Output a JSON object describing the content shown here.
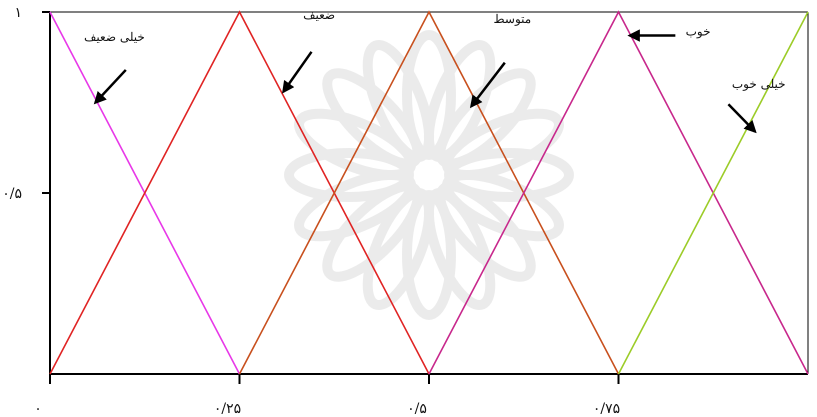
{
  "chart_data": {
    "type": "line",
    "title": "",
    "xlabel": "",
    "ylabel": "",
    "xlim": [
      0,
      1
    ],
    "ylim": [
      0,
      1
    ],
    "grid": false,
    "legend": "none",
    "x_ticks": [
      {
        "value": 0,
        "label": "۰"
      },
      {
        "value": 0.25,
        "label": "۰/۲۵"
      },
      {
        "value": 0.5,
        "label": "۰/۵"
      },
      {
        "value": 0.75,
        "label": "۰/۷۵"
      }
    ],
    "y_ticks": [
      {
        "value": 0.5,
        "label": "۰/۵"
      },
      {
        "value": 1,
        "label": "۱"
      }
    ],
    "series": [
      {
        "key": "very-weak",
        "color": "#e838e8",
        "points": [
          [
            0,
            1
          ],
          [
            0.25,
            0
          ]
        ]
      },
      {
        "key": "weak",
        "color": "#e02424",
        "points": [
          [
            0,
            0
          ],
          [
            0.25,
            1
          ],
          [
            0.5,
            0
          ]
        ]
      },
      {
        "key": "medium",
        "color": "#c8501e",
        "points": [
          [
            0.25,
            0
          ],
          [
            0.5,
            1
          ],
          [
            0.75,
            0
          ]
        ]
      },
      {
        "key": "good",
        "color": "#c8288c",
        "points": [
          [
            0.5,
            0
          ],
          [
            0.75,
            1
          ],
          [
            1,
            0
          ]
        ]
      },
      {
        "key": "very-good",
        "color": "#9ccc28",
        "points": [
          [
            0.75,
            0
          ],
          [
            1,
            1
          ]
        ]
      }
    ],
    "annotations": [
      {
        "key": "very-weak",
        "text": "خیلی ضعیف",
        "x": 0.085,
        "y": 0.92,
        "arrow_to": [
          0.06,
          0.75
        ],
        "arrow_from": [
          0.1,
          0.84
        ]
      },
      {
        "key": "weak",
        "text": "ضعیف",
        "x": 0.355,
        "y": 0.98,
        "arrow_to": [
          0.308,
          0.78
        ],
        "arrow_from": [
          0.345,
          0.89
        ]
      },
      {
        "key": "medium",
        "text": "متوسط",
        "x": 0.61,
        "y": 0.97,
        "arrow_to": [
          0.556,
          0.74
        ],
        "arrow_from": [
          0.6,
          0.86
        ]
      },
      {
        "key": "good",
        "text": "خوب",
        "x": 0.855,
        "y": 0.935,
        "arrow_to": [
          0.765,
          0.935
        ],
        "arrow_from": [
          0.825,
          0.935
        ]
      },
      {
        "key": "very-good",
        "text": "خیلی خوب",
        "x": 0.935,
        "y": 0.79,
        "arrow_to": [
          0.93,
          0.67
        ],
        "arrow_from": [
          0.895,
          0.745
        ]
      }
    ]
  }
}
